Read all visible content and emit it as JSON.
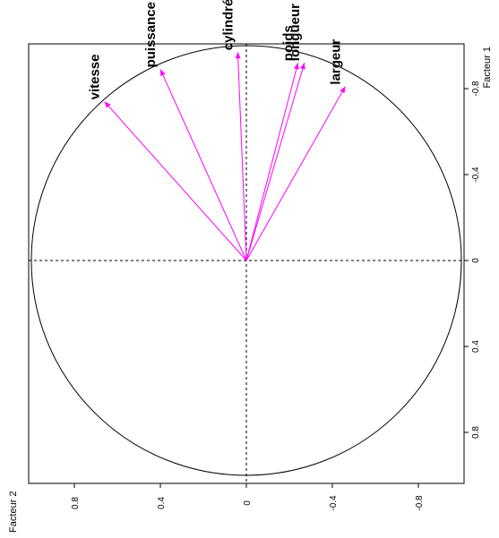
{
  "chart_data": {
    "type": "scatter",
    "title": "",
    "xlabel": "Facteur 1",
    "ylabel": "Facteur 2",
    "xlim": [
      -1.0,
      1.0
    ],
    "ylim": [
      -1.0,
      1.0
    ],
    "xticks": [
      -0.8,
      -0.4,
      0,
      0.4,
      0.8
    ],
    "xtick_labels": [
      "-0.8",
      "-0.4",
      "0",
      "0.4",
      "0.8"
    ],
    "yticks": [
      0.8,
      0.4,
      0,
      -0.4,
      -0.8
    ],
    "ytick_labels": [
      "0.8",
      "0.4",
      "0",
      "-0.4",
      "-0.8"
    ],
    "unit_circle": true,
    "grid": false,
    "variables": [
      {
        "name": "vitesse",
        "x": -0.74,
        "y": 0.66
      },
      {
        "name": "puissance",
        "x": -0.89,
        "y": 0.4
      },
      {
        "name": "cylindrée",
        "x": -0.97,
        "y": 0.04
      },
      {
        "name": "poids",
        "x": -0.92,
        "y": -0.24
      },
      {
        "name": "longueur",
        "x": -0.92,
        "y": -0.27
      },
      {
        "name": "largeur",
        "x": -0.81,
        "y": -0.46
      }
    ],
    "arrow_color": "#ff00ff"
  }
}
